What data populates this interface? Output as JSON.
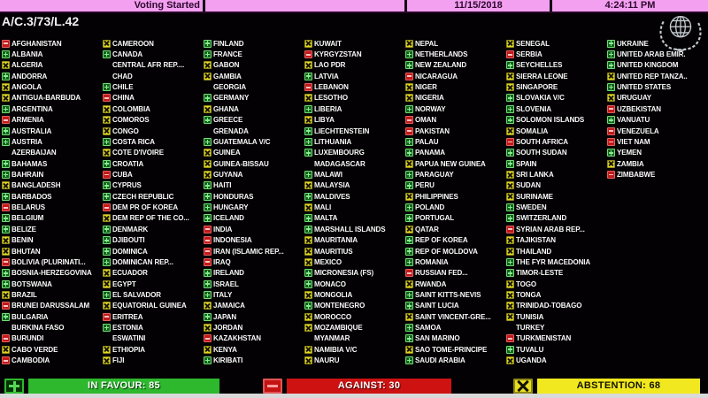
{
  "header": {
    "status": "Voting Started",
    "date": "11/15/2018",
    "time": "4:24:11 PM",
    "resolution": "A/C.3/73/L.42"
  },
  "legend": {
    "in_favour_label": "IN FAVOUR: 85",
    "against_label": "AGAINST: 30",
    "abstention_label": "ABSTENTION: 68",
    "in_favour_count": 85,
    "against_count": 30,
    "abstention_count": 68
  },
  "icons": {
    "yes": "green-plus",
    "no": "red-minus",
    "abstain": "yellow-x",
    "emblem": "un-emblem"
  },
  "colors": {
    "topbar_pink": "#f3a0f0",
    "background": "#030103",
    "yes_green": "#15601f",
    "abstain_yellow": "#e2d822",
    "no_red": "#c21a1a",
    "favour_bar": "#2eb82e",
    "against_bar": "#ce1212",
    "abstain_bar": "#f2e820"
  },
  "columns": [
    [
      {
        "name": "AFGHANISTAN",
        "vote": "N"
      },
      {
        "name": "ALBANIA",
        "vote": "Y"
      },
      {
        "name": "ALGERIA",
        "vote": "A"
      },
      {
        "name": "ANDORRA",
        "vote": "Y"
      },
      {
        "name": "ANGOLA",
        "vote": "A"
      },
      {
        "name": "ANTIGUA-BARBUDA",
        "vote": "A"
      },
      {
        "name": "ARGENTINA",
        "vote": "Y"
      },
      {
        "name": "ARMENIA",
        "vote": "N"
      },
      {
        "name": "AUSTRALIA",
        "vote": "Y"
      },
      {
        "name": "AUSTRIA",
        "vote": "Y"
      },
      {
        "name": "AZERBAIJAN",
        "vote": ""
      },
      {
        "name": "BAHAMAS",
        "vote": "Y"
      },
      {
        "name": "BAHRAIN",
        "vote": "Y"
      },
      {
        "name": "BANGLADESH",
        "vote": "A"
      },
      {
        "name": "BARBADOS",
        "vote": "Y"
      },
      {
        "name": "BELARUS",
        "vote": "N"
      },
      {
        "name": "BELGIUM",
        "vote": "Y"
      },
      {
        "name": "BELIZE",
        "vote": "Y"
      },
      {
        "name": "BENIN",
        "vote": "A"
      },
      {
        "name": "BHUTAN",
        "vote": "A"
      },
      {
        "name": "BOLIVIA (PLURINATI...",
        "vote": "N"
      },
      {
        "name": "BOSNIA-HERZEGOVINA",
        "vote": "Y"
      },
      {
        "name": "BOTSWANA",
        "vote": "Y"
      },
      {
        "name": "BRAZIL",
        "vote": "A"
      },
      {
        "name": "BRUNEI DARUSSALAM",
        "vote": "N"
      },
      {
        "name": "BULGARIA",
        "vote": "Y"
      },
      {
        "name": "BURKINA FASO",
        "vote": ""
      },
      {
        "name": "BURUNDI",
        "vote": "N"
      },
      {
        "name": "CABO VERDE",
        "vote": "A"
      },
      {
        "name": "CAMBODIA",
        "vote": "N"
      }
    ],
    [
      {
        "name": "CAMEROON",
        "vote": "A"
      },
      {
        "name": "CANADA",
        "vote": "Y"
      },
      {
        "name": "CENTRAL AFR REP....",
        "vote": ""
      },
      {
        "name": "CHAD",
        "vote": ""
      },
      {
        "name": "CHILE",
        "vote": "Y"
      },
      {
        "name": "CHINA",
        "vote": "N"
      },
      {
        "name": "COLOMBIA",
        "vote": "A"
      },
      {
        "name": "COMOROS",
        "vote": "A"
      },
      {
        "name": "CONGO",
        "vote": "A"
      },
      {
        "name": "COSTA RICA",
        "vote": "Y"
      },
      {
        "name": "COTE D'IVOIRE",
        "vote": "A"
      },
      {
        "name": "CROATIA",
        "vote": "Y"
      },
      {
        "name": "CUBA",
        "vote": "N"
      },
      {
        "name": "CYPRUS",
        "vote": "Y"
      },
      {
        "name": "CZECH REPUBLIC",
        "vote": "Y"
      },
      {
        "name": "DEM PR OF KOREA",
        "vote": "N"
      },
      {
        "name": "DEM REP OF THE CO...",
        "vote": "A"
      },
      {
        "name": "DENMARK",
        "vote": "Y"
      },
      {
        "name": "DJIBOUTI",
        "vote": "Y"
      },
      {
        "name": "DOMINICA",
        "vote": "Y"
      },
      {
        "name": "DOMINICAN REP...",
        "vote": "Y"
      },
      {
        "name": "ECUADOR",
        "vote": "A"
      },
      {
        "name": "EGYPT",
        "vote": "A"
      },
      {
        "name": "EL SALVADOR",
        "vote": "Y"
      },
      {
        "name": "EQUATORIAL GUINEA",
        "vote": "A"
      },
      {
        "name": "ERITREA",
        "vote": "N"
      },
      {
        "name": "ESTONIA",
        "vote": "Y"
      },
      {
        "name": "ESWATINI",
        "vote": ""
      },
      {
        "name": "ETHIOPIA",
        "vote": "A"
      },
      {
        "name": "FIJI",
        "vote": "A"
      }
    ],
    [
      {
        "name": "FINLAND",
        "vote": "Y"
      },
      {
        "name": "FRANCE",
        "vote": "Y"
      },
      {
        "name": "GABON",
        "vote": "A"
      },
      {
        "name": "GAMBIA",
        "vote": "A"
      },
      {
        "name": "GEORGIA",
        "vote": ""
      },
      {
        "name": "GERMANY",
        "vote": "Y"
      },
      {
        "name": "GHANA",
        "vote": "A"
      },
      {
        "name": "GREECE",
        "vote": "Y"
      },
      {
        "name": "GRENADA",
        "vote": ""
      },
      {
        "name": "GUATEMALA V/C",
        "vote": "Y"
      },
      {
        "name": "GUINEA",
        "vote": "A"
      },
      {
        "name": "GUINEA-BISSAU",
        "vote": "A"
      },
      {
        "name": "GUYANA",
        "vote": "A"
      },
      {
        "name": "HAITI",
        "vote": "Y"
      },
      {
        "name": "HONDURAS",
        "vote": "Y"
      },
      {
        "name": "HUNGARY",
        "vote": "Y"
      },
      {
        "name": "ICELAND",
        "vote": "Y"
      },
      {
        "name": "INDIA",
        "vote": "N"
      },
      {
        "name": "INDONESIA",
        "vote": "N"
      },
      {
        "name": "IRAN (ISLAMIC REP...",
        "vote": "N"
      },
      {
        "name": "IRAQ",
        "vote": "N"
      },
      {
        "name": "IRELAND",
        "vote": "Y"
      },
      {
        "name": "ISRAEL",
        "vote": "Y"
      },
      {
        "name": "ITALY",
        "vote": "Y"
      },
      {
        "name": "JAMAICA",
        "vote": "A"
      },
      {
        "name": "JAPAN",
        "vote": "Y"
      },
      {
        "name": "JORDAN",
        "vote": "A"
      },
      {
        "name": "KAZAKHSTAN",
        "vote": "N"
      },
      {
        "name": "KENYA",
        "vote": "A"
      },
      {
        "name": "KIRIBATI",
        "vote": "Y"
      }
    ],
    [
      {
        "name": "KUWAIT",
        "vote": "A"
      },
      {
        "name": "KYRGYZSTAN",
        "vote": "N"
      },
      {
        "name": "LAO PDR",
        "vote": "A"
      },
      {
        "name": "LATVIA",
        "vote": "Y"
      },
      {
        "name": "LEBANON",
        "vote": "N"
      },
      {
        "name": "LESOTHO",
        "vote": "A"
      },
      {
        "name": "LIBERIA",
        "vote": "Y"
      },
      {
        "name": "LIBYA",
        "vote": "A"
      },
      {
        "name": "LIECHTENSTEIN",
        "vote": "Y"
      },
      {
        "name": "LITHUANIA",
        "vote": "Y"
      },
      {
        "name": "LUXEMBOURG",
        "vote": "Y"
      },
      {
        "name": "MADAGASCAR",
        "vote": ""
      },
      {
        "name": "MALAWI",
        "vote": "Y"
      },
      {
        "name": "MALAYSIA",
        "vote": "A"
      },
      {
        "name": "MALDIVES",
        "vote": "Y"
      },
      {
        "name": "MALI",
        "vote": "A"
      },
      {
        "name": "MALTA",
        "vote": "Y"
      },
      {
        "name": "MARSHALL ISLANDS",
        "vote": "Y"
      },
      {
        "name": "MAURITANIA",
        "vote": "A"
      },
      {
        "name": "MAURITIUS",
        "vote": "A"
      },
      {
        "name": "MEXICO",
        "vote": "A"
      },
      {
        "name": "MICRONESIA (FS)",
        "vote": "Y"
      },
      {
        "name": "MONACO",
        "vote": "Y"
      },
      {
        "name": "MONGOLIA",
        "vote": "A"
      },
      {
        "name": "MONTENEGRO",
        "vote": "Y"
      },
      {
        "name": "MOROCCO",
        "vote": "A"
      },
      {
        "name": "MOZAMBIQUE",
        "vote": "A"
      },
      {
        "name": "MYANMAR",
        "vote": ""
      },
      {
        "name": "NAMIBIA V/C",
        "vote": "A"
      },
      {
        "name": "NAURU",
        "vote": "A"
      }
    ],
    [
      {
        "name": "NEPAL",
        "vote": "A"
      },
      {
        "name": "NETHERLANDS",
        "vote": "Y"
      },
      {
        "name": "NEW ZEALAND",
        "vote": "Y"
      },
      {
        "name": "NICARAGUA",
        "vote": "N"
      },
      {
        "name": "NIGER",
        "vote": "A"
      },
      {
        "name": "NIGERIA",
        "vote": "A"
      },
      {
        "name": "NORWAY",
        "vote": "Y"
      },
      {
        "name": "OMAN",
        "vote": "N"
      },
      {
        "name": "PAKISTAN",
        "vote": "N"
      },
      {
        "name": "PALAU",
        "vote": "Y"
      },
      {
        "name": "PANAMA",
        "vote": "Y"
      },
      {
        "name": "PAPUA NEW GUINEA",
        "vote": "A"
      },
      {
        "name": "PARAGUAY",
        "vote": "Y"
      },
      {
        "name": "PERU",
        "vote": "Y"
      },
      {
        "name": "PHILIPPINES",
        "vote": "A"
      },
      {
        "name": "POLAND",
        "vote": "Y"
      },
      {
        "name": "PORTUGAL",
        "vote": "Y"
      },
      {
        "name": "QATAR",
        "vote": "A"
      },
      {
        "name": "REP OF KOREA",
        "vote": "Y"
      },
      {
        "name": "REP OF MOLDOVA",
        "vote": "Y"
      },
      {
        "name": "ROMANIA",
        "vote": "Y"
      },
      {
        "name": "RUSSIAN FED...",
        "vote": "N"
      },
      {
        "name": "RWANDA",
        "vote": "A"
      },
      {
        "name": "SAINT KITTS-NEVIS",
        "vote": "Y"
      },
      {
        "name": "SAINT LUCIA",
        "vote": "Y"
      },
      {
        "name": "SAINT VINCENT-GRE...",
        "vote": "A"
      },
      {
        "name": "SAMOA",
        "vote": "Y"
      },
      {
        "name": "SAN MARINO",
        "vote": "Y"
      },
      {
        "name": "SAO TOME-PRINCIPE",
        "vote": "A"
      },
      {
        "name": "SAUDI ARABIA",
        "vote": "Y"
      }
    ],
    [
      {
        "name": "SENEGAL",
        "vote": "A"
      },
      {
        "name": "SERBIA",
        "vote": "N"
      },
      {
        "name": "SEYCHELLES",
        "vote": "Y"
      },
      {
        "name": "SIERRA LEONE",
        "vote": "A"
      },
      {
        "name": "SINGAPORE",
        "vote": "A"
      },
      {
        "name": "SLOVAKIA V/C",
        "vote": "Y"
      },
      {
        "name": "SLOVENIA",
        "vote": "Y"
      },
      {
        "name": "SOLOMON ISLANDS",
        "vote": "Y"
      },
      {
        "name": "SOMALIA",
        "vote": "A"
      },
      {
        "name": "SOUTH AFRICA",
        "vote": "N"
      },
      {
        "name": "SOUTH SUDAN",
        "vote": "Y"
      },
      {
        "name": "SPAIN",
        "vote": "Y"
      },
      {
        "name": "SRI LANKA",
        "vote": "A"
      },
      {
        "name": "SUDAN",
        "vote": "A"
      },
      {
        "name": "SURINAME",
        "vote": "A"
      },
      {
        "name": "SWEDEN",
        "vote": "Y"
      },
      {
        "name": "SWITZERLAND",
        "vote": "Y"
      },
      {
        "name": "SYRIAN ARAB REP...",
        "vote": "N"
      },
      {
        "name": "TAJIKISTAN",
        "vote": "A"
      },
      {
        "name": "THAILAND",
        "vote": "A"
      },
      {
        "name": "THE FYR MACEDONIA",
        "vote": "Y"
      },
      {
        "name": "TIMOR-LESTE",
        "vote": "Y"
      },
      {
        "name": "TOGO",
        "vote": "A"
      },
      {
        "name": "TONGA",
        "vote": "A"
      },
      {
        "name": "TRINIDAD-TOBAGO",
        "vote": "A"
      },
      {
        "name": "TUNISIA",
        "vote": "A"
      },
      {
        "name": "TURKEY",
        "vote": ""
      },
      {
        "name": "TURKMENISTAN",
        "vote": "N"
      },
      {
        "name": "TUVALU",
        "vote": "Y"
      },
      {
        "name": "UGANDA",
        "vote": "A"
      }
    ],
    [
      {
        "name": "UKRAINE",
        "vote": "Y"
      },
      {
        "name": "UNITED ARAB EMIR.",
        "vote": "Y"
      },
      {
        "name": "UNITED KINGDOM",
        "vote": "Y"
      },
      {
        "name": "UNITED REP TANZA..",
        "vote": "A"
      },
      {
        "name": "UNITED STATES",
        "vote": "Y"
      },
      {
        "name": "URUGUAY",
        "vote": "A"
      },
      {
        "name": "UZBEKISTAN",
        "vote": "N"
      },
      {
        "name": "VANUATU",
        "vote": "Y"
      },
      {
        "name": "VENEZUELA",
        "vote": "N"
      },
      {
        "name": "VIET NAM",
        "vote": "N"
      },
      {
        "name": "YEMEN",
        "vote": "Y"
      },
      {
        "name": "ZAMBIA",
        "vote": "A"
      },
      {
        "name": "ZIMBABWE",
        "vote": "N"
      }
    ]
  ]
}
